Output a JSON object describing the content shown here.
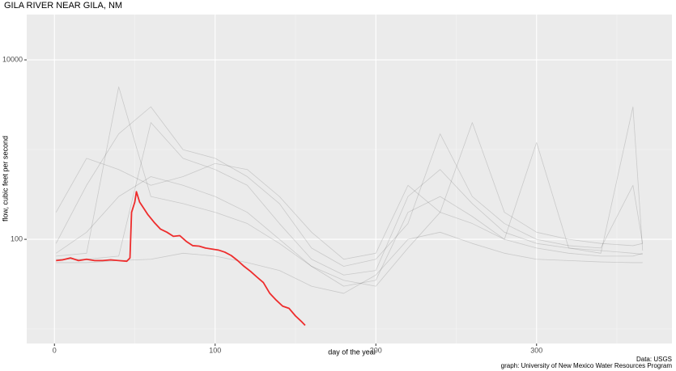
{
  "chart_data": {
    "type": "line",
    "title": "GILA RIVER NEAR GILA, NM",
    "x_label": "day of the year",
    "y_label": "flow, cubic feet per second",
    "captions": [
      "Data: USGS",
      "graph: University of New Mexico Water Resources Program"
    ],
    "log_y": true,
    "grid": true,
    "xlim": [
      -17.25,
      384.25
    ],
    "ylim": [
      6.9,
      32000
    ],
    "xticks": [
      0,
      100,
      200,
      300
    ],
    "x_minor_ticks": [
      50,
      150,
      250,
      350
    ],
    "yticks": [
      100,
      10000
    ],
    "y_minor_ticks": [
      10,
      1000
    ],
    "series": [
      {
        "color": "#000000",
        "opacity": 0.14,
        "width": 0.8,
        "x": [
          1,
          20,
          40,
          60,
          80,
          100,
          120,
          140,
          160,
          180,
          200,
          220,
          240,
          260,
          280,
          300,
          320,
          340,
          360,
          366
        ],
        "values": [
          70,
          120,
          300,
          500,
          400,
          300,
          200,
          100,
          50,
          35,
          30,
          80,
          200,
          150,
          100,
          80,
          70,
          65,
          65,
          70
        ]
      },
      {
        "color": "#000000",
        "opacity": 0.14,
        "width": 0.8,
        "x": [
          1,
          20,
          40,
          60,
          80,
          100,
          120,
          140,
          160,
          180,
          200,
          220,
          240,
          260,
          280,
          300,
          320,
          340,
          360,
          366
        ],
        "values": [
          60,
          60,
          65,
          2000,
          800,
          600,
          400,
          150,
          60,
          40,
          45,
          300,
          600,
          250,
          120,
          90,
          80,
          75,
          70,
          68
        ]
      },
      {
        "color": "#000000",
        "opacity": 0.14,
        "width": 0.8,
        "x": [
          1,
          20,
          40,
          60,
          80,
          100,
          120,
          140,
          160,
          180,
          200,
          220,
          240,
          260,
          280,
          300,
          320,
          340,
          360,
          366
        ],
        "values": [
          90,
          400,
          1500,
          3000,
          1000,
          800,
          500,
          250,
          80,
          50,
          60,
          150,
          1500,
          300,
          150,
          100,
          85,
          80,
          400,
          90
        ]
      },
      {
        "color": "#000000",
        "opacity": 0.14,
        "width": 0.8,
        "x": [
          1,
          20,
          40,
          60,
          80,
          100,
          120,
          140,
          160,
          180,
          200,
          220,
          240,
          260,
          280,
          300,
          320,
          340,
          360,
          366
        ],
        "values": [
          55,
          55,
          58,
          60,
          70,
          65,
          55,
          45,
          30,
          25,
          40,
          100,
          120,
          90,
          70,
          60,
          58,
          56,
          55,
          55
        ]
      },
      {
        "color": "#000000",
        "opacity": 0.14,
        "width": 0.8,
        "x": [
          1,
          20,
          40,
          60,
          80,
          100,
          120,
          140,
          160,
          180,
          200,
          220,
          240,
          260,
          280,
          300,
          320,
          340,
          360,
          366
        ],
        "values": [
          200,
          800,
          600,
          400,
          500,
          700,
          600,
          300,
          120,
          60,
          70,
          400,
          200,
          2000,
          200,
          120,
          100,
          90,
          85,
          90
        ]
      },
      {
        "color": "#000000",
        "opacity": 0.14,
        "width": 0.8,
        "x": [
          1,
          20,
          40,
          60,
          80,
          100,
          120,
          140,
          160,
          180,
          200,
          220,
          240,
          260,
          280,
          300,
          320,
          340,
          360,
          366
        ],
        "values": [
          65,
          70,
          5000,
          300,
          250,
          200,
          150,
          90,
          50,
          30,
          35,
          200,
          300,
          180,
          100,
          1200,
          80,
          70,
          3000,
          75
        ]
      },
      {
        "color": "#ee2c2c",
        "opacity": 1,
        "width": 1.8,
        "x": [
          1,
          5,
          10,
          15,
          20,
          25,
          30,
          35,
          40,
          45,
          47,
          48,
          50,
          51,
          53,
          55,
          58,
          62,
          66,
          70,
          74,
          78,
          82,
          86,
          90,
          94,
          98,
          102,
          106,
          110,
          114,
          118,
          122,
          126,
          130,
          134,
          138,
          142,
          146,
          150,
          154,
          156
        ],
        "values": [
          58,
          59,
          62,
          58,
          60,
          58,
          58,
          59,
          58,
          57,
          62,
          200,
          260,
          340,
          260,
          230,
          190,
          155,
          130,
          120,
          108,
          110,
          95,
          85,
          84,
          80,
          78,
          76,
          72,
          66,
          58,
          50,
          44,
          38,
          33,
          25,
          21,
          18,
          17,
          14,
          12,
          11
        ]
      }
    ]
  }
}
